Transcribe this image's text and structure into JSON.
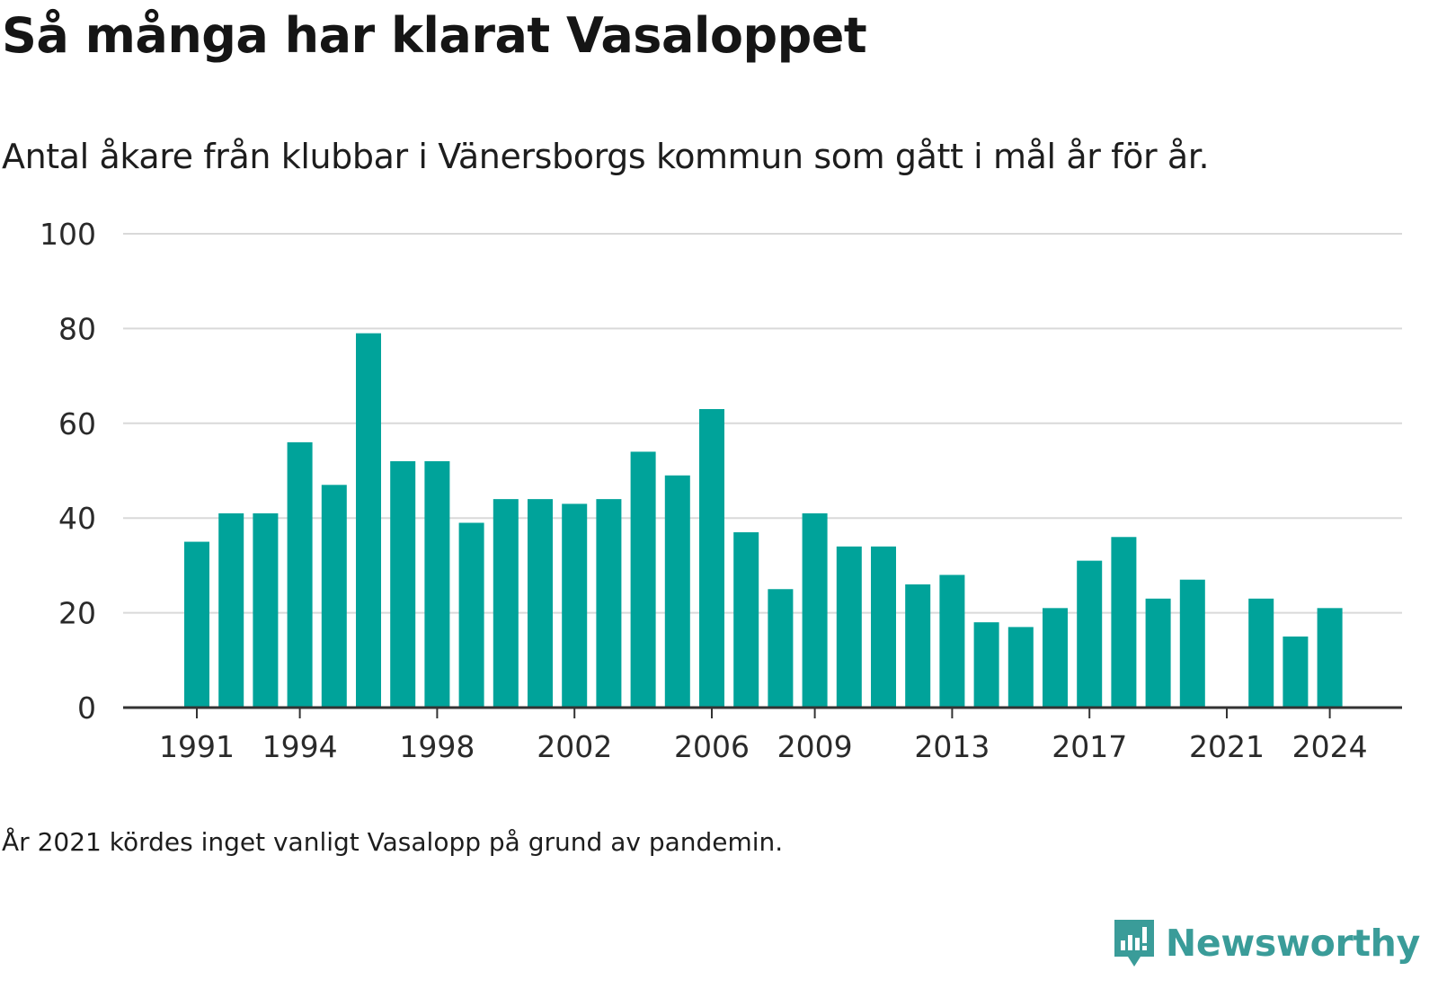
{
  "header": {
    "title": "Så många har klarat Vasaloppet",
    "subtitle": "Antal åkare från klubbar i Vänersborgs kommun som gått i mål år för år."
  },
  "footer": {
    "note": "År 2021 kördes inget vanligt Vasalopp på grund av pandemin.",
    "brand": "Newsworthy",
    "brand_icon": "newsworthy-logo-icon"
  },
  "colors": {
    "bar": "#00a39a",
    "grid": "#d9d9d9",
    "axis": "#333333",
    "brand": "#3a9c99"
  },
  "chart_data": {
    "type": "bar",
    "categories": [
      "1991",
      "1992",
      "1993",
      "1994",
      "1995",
      "1996",
      "1997",
      "1998",
      "1999",
      "2000",
      "2001",
      "2002",
      "2003",
      "2004",
      "2005",
      "2006",
      "2007",
      "2008",
      "2009",
      "2010",
      "2011",
      "2012",
      "2013",
      "2014",
      "2015",
      "2016",
      "2017",
      "2018",
      "2019",
      "2020",
      "2021",
      "2022",
      "2023",
      "2024"
    ],
    "values": [
      35,
      41,
      41,
      56,
      47,
      79,
      52,
      52,
      39,
      44,
      44,
      43,
      44,
      54,
      49,
      63,
      37,
      25,
      41,
      34,
      34,
      26,
      28,
      18,
      17,
      21,
      31,
      36,
      23,
      27,
      0,
      23,
      15,
      21
    ],
    "x_tick_labels": [
      "1991",
      "1994",
      "1998",
      "2002",
      "2006",
      "2009",
      "2013",
      "2017",
      "2021",
      "2024"
    ],
    "y_ticks": [
      0,
      20,
      40,
      60,
      80,
      100
    ],
    "ylim": [
      0,
      100
    ],
    "xlabel": "",
    "ylabel": "",
    "grid": true,
    "legend": "none"
  }
}
